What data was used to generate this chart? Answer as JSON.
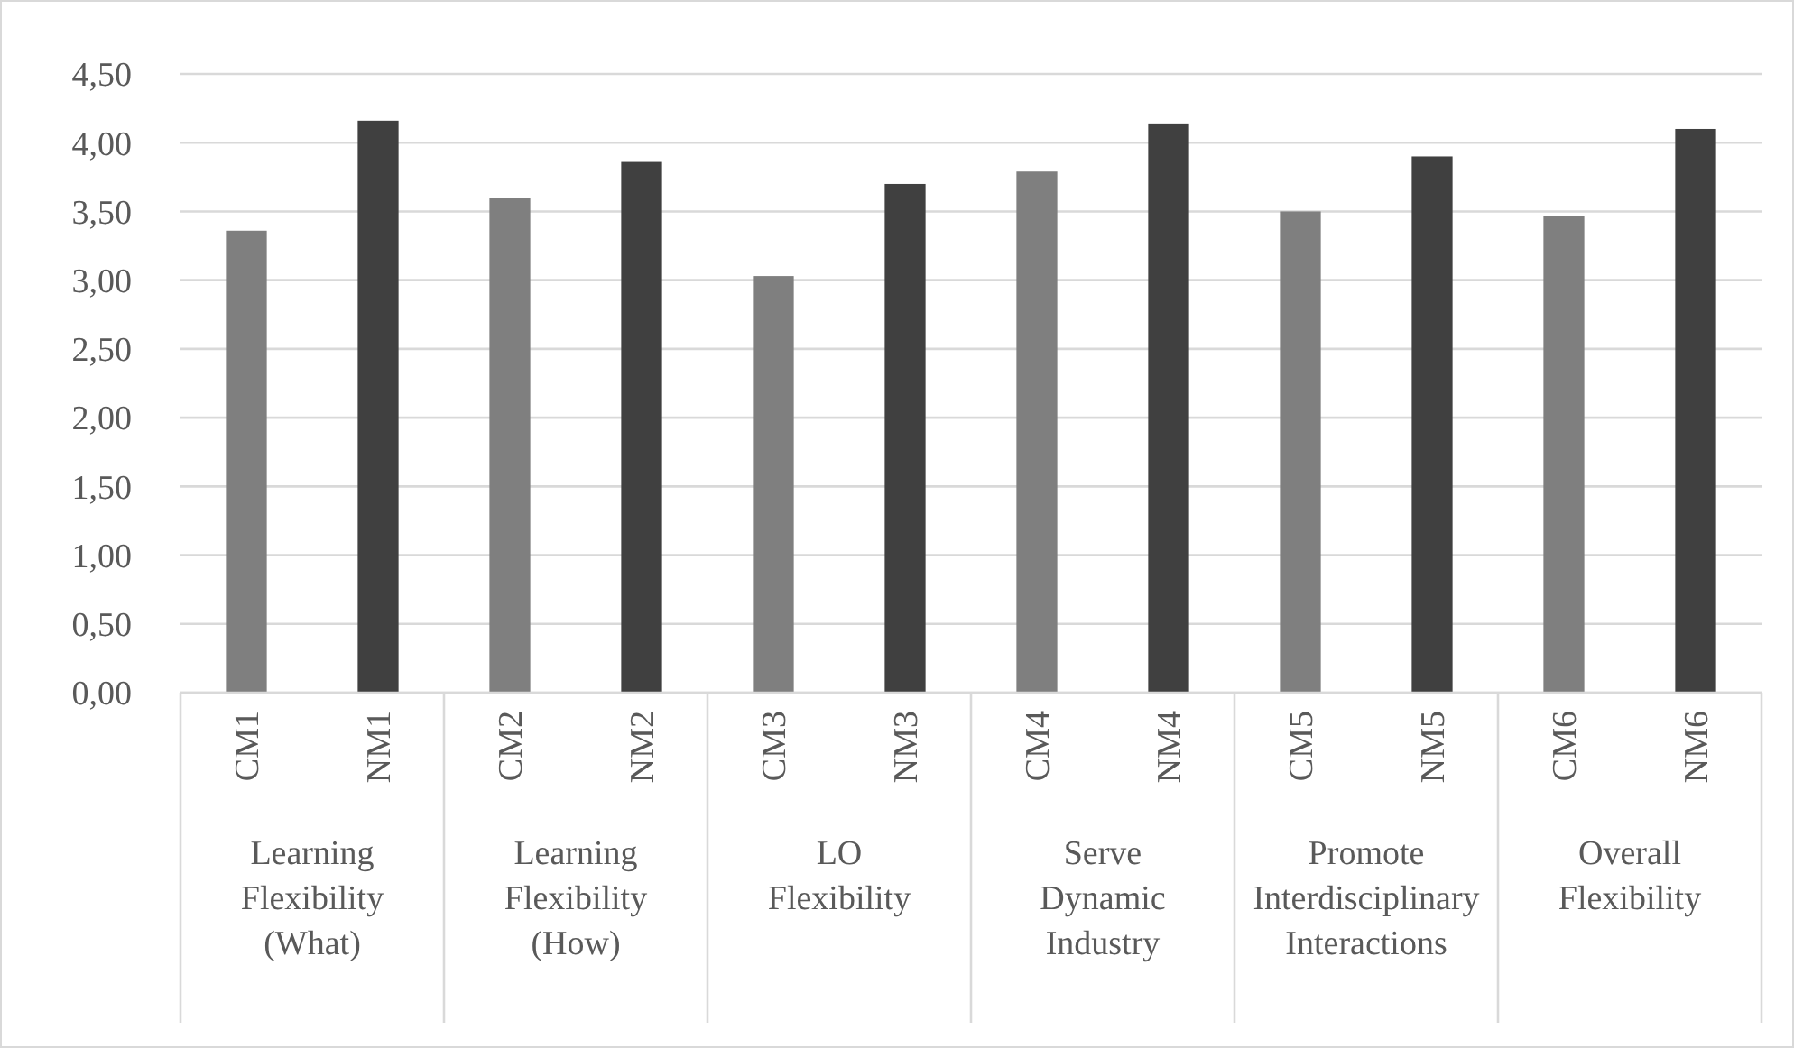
{
  "chart_data": {
    "type": "bar",
    "categories": [
      "CM1",
      "NM1",
      "CM2",
      "NM2",
      "CM3",
      "NM3",
      "CM4",
      "NM4",
      "CM5",
      "NM5",
      "CM6",
      "NM6"
    ],
    "values": [
      3.36,
      4.16,
      3.6,
      3.86,
      3.03,
      3.7,
      3.79,
      4.14,
      3.5,
      3.9,
      3.47,
      4.1
    ],
    "colors": [
      "#7f7f7f",
      "#404040",
      "#7f7f7f",
      "#404040",
      "#7f7f7f",
      "#404040",
      "#7f7f7f",
      "#404040",
      "#7f7f7f",
      "#404040",
      "#7f7f7f",
      "#404040"
    ],
    "ylim": [
      0,
      4.5
    ],
    "yticks": [
      {
        "value": 0,
        "label": "0,00"
      },
      {
        "value": 0.5,
        "label": "0,50"
      },
      {
        "value": 1,
        "label": "1,00"
      },
      {
        "value": 1.5,
        "label": "1,50"
      },
      {
        "value": 2,
        "label": "2,00"
      },
      {
        "value": 2.5,
        "label": "2,50"
      },
      {
        "value": 3,
        "label": "3,00"
      },
      {
        "value": 3.5,
        "label": "3,50"
      },
      {
        "value": 4,
        "label": "4,00"
      },
      {
        "value": 4.5,
        "label": "4,50"
      }
    ],
    "grid": "y",
    "annotations": [
      "Learning Flexibility (What)",
      "Learning Flexibility (How)",
      "LO Flexibility",
      "Serve Dynamic Industry",
      "Promote Interdisciplinary Interactions",
      "Overall Flexibility"
    ]
  }
}
